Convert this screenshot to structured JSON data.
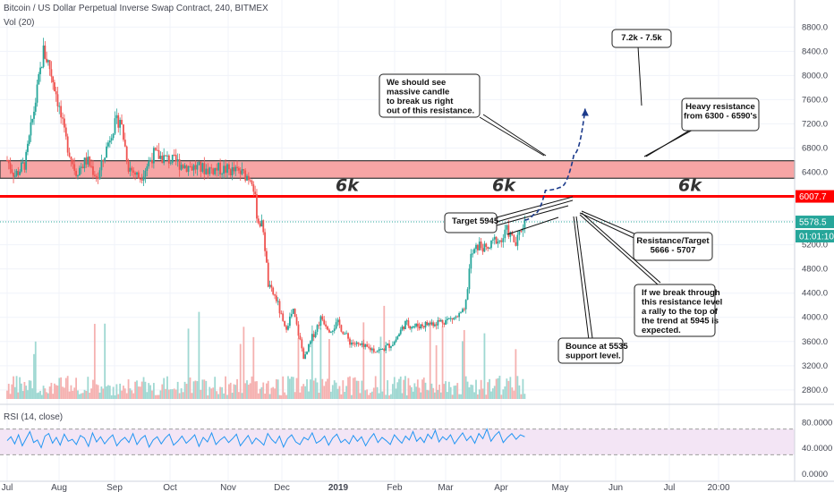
{
  "header": {
    "title": "Bitcoin / US Dollar Perpetual Inverse Swap Contract, 240, BITMEX",
    "volume_label": "Vol (20)",
    "rsi_label": "RSI (14, close)"
  },
  "colors": {
    "up": "#26a69a",
    "down": "#ef5350",
    "resistance_zone": "#f7a5a5",
    "red_line": "#ff0000",
    "price_line": "#26a69a",
    "rsi_line": "#2196f3",
    "rsi_band": "#f3e5f5",
    "arrow": "#1b3a8b"
  },
  "chart_data": [
    {
      "type": "candlestick",
      "title": "Bitcoin / US Dollar Perpetual Inverse Swap Contract, 240, BITMEX",
      "y_ticks": [
        "8800.0",
        "8400.0",
        "8000.0",
        "7600.0",
        "7200.0",
        "6800.0",
        "6400.0",
        "6000.0",
        "5600.0",
        "5200.0",
        "4800.0",
        "4400.0",
        "4000.0",
        "3600.0",
        "3200.0",
        "2800.0"
      ],
      "y_tick_values": [
        8800,
        8400,
        8000,
        7600,
        7200,
        6800,
        6400,
        6000,
        5600,
        5200,
        4800,
        4400,
        4000,
        3600,
        3200,
        2800
      ],
      "ylim": [
        2650,
        9100
      ],
      "x_ticks": [
        "Jul",
        "Aug",
        "Sep",
        "Oct",
        "Nov",
        "Dec",
        "2019",
        "Feb",
        "Mar",
        "Apr",
        "May",
        "Jun",
        "Jul",
        "20:00"
      ],
      "x_tick_months": [
        0,
        1,
        2,
        3,
        4,
        5,
        6,
        7,
        8,
        9,
        10,
        11,
        12,
        13
      ],
      "price_path": [
        {
          "m": 0.0,
          "p": 6600
        },
        {
          "m": 0.15,
          "p": 6350
        },
        {
          "m": 0.35,
          "p": 6550
        },
        {
          "m": 0.55,
          "p": 7600
        },
        {
          "m": 0.7,
          "p": 8400
        },
        {
          "m": 0.8,
          "p": 8200
        },
        {
          "m": 0.95,
          "p": 7700
        },
        {
          "m": 1.1,
          "p": 7000
        },
        {
          "m": 1.3,
          "p": 6400
        },
        {
          "m": 1.5,
          "p": 6600
        },
        {
          "m": 1.7,
          "p": 6300
        },
        {
          "m": 1.95,
          "p": 7100
        },
        {
          "m": 2.1,
          "p": 7300
        },
        {
          "m": 2.25,
          "p": 6500
        },
        {
          "m": 2.45,
          "p": 6300
        },
        {
          "m": 2.7,
          "p": 6700
        },
        {
          "m": 3.0,
          "p": 6600
        },
        {
          "m": 3.3,
          "p": 6500
        },
        {
          "m": 3.6,
          "p": 6450
        },
        {
          "m": 3.9,
          "p": 6450
        },
        {
          "m": 4.2,
          "p": 6400
        },
        {
          "m": 4.45,
          "p": 6300
        },
        {
          "m": 4.55,
          "p": 5600
        },
        {
          "m": 4.65,
          "p": 5500
        },
        {
          "m": 4.75,
          "p": 4500
        },
        {
          "m": 4.9,
          "p": 4300
        },
        {
          "m": 5.05,
          "p": 3800
        },
        {
          "m": 5.2,
          "p": 4100
        },
        {
          "m": 5.4,
          "p": 3300
        },
        {
          "m": 5.55,
          "p": 3700
        },
        {
          "m": 5.7,
          "p": 4000
        },
        {
          "m": 5.85,
          "p": 3800
        },
        {
          "m": 6.0,
          "p": 3900
        },
        {
          "m": 6.2,
          "p": 3600
        },
        {
          "m": 6.45,
          "p": 3500
        },
        {
          "m": 6.75,
          "p": 3450
        },
        {
          "m": 7.0,
          "p": 3600
        },
        {
          "m": 7.2,
          "p": 3900
        },
        {
          "m": 7.4,
          "p": 3850
        },
        {
          "m": 7.7,
          "p": 3900
        },
        {
          "m": 8.0,
          "p": 3950
        },
        {
          "m": 8.2,
          "p": 4000
        },
        {
          "m": 8.35,
          "p": 4100
        },
        {
          "m": 8.45,
          "p": 5000
        },
        {
          "m": 8.6,
          "p": 5200
        },
        {
          "m": 8.75,
          "p": 5100
        },
        {
          "m": 8.9,
          "p": 5300
        },
        {
          "m": 9.0,
          "p": 5250
        },
        {
          "m": 9.1,
          "p": 5450
        },
        {
          "m": 9.25,
          "p": 5200
        },
        {
          "m": 9.35,
          "p": 5500
        },
        {
          "m": 9.4,
          "p": 5590
        }
      ],
      "resistance_zone": {
        "low": 6300,
        "high": 6590
      },
      "horizontal_line": 6000,
      "current_price": 5578.5,
      "price_labels": {
        "line": "6007.7",
        "current": "5578.5",
        "countdown": "01:01:10"
      },
      "annotations": {
        "six_k": [
          "6k",
          "6k",
          "6k"
        ],
        "target_box": "7.2k - 7.5k",
        "massive_candle": [
          "We should see",
          "massive candle",
          "to break us right",
          "out of this resistance."
        ],
        "heavy_resistance": [
          "Heavy resistance",
          "from 6300 - 6590's"
        ],
        "target_5945": "Target 5945",
        "resistance_target": [
          "Resistance/Target",
          "5666 - 5707"
        ],
        "breakthrough": [
          "If we break through",
          "this resistance level",
          "a rally to the top of",
          "the trend at 5945 is",
          "expected."
        ],
        "bounce": [
          "Bounce at 5535",
          "support level."
        ]
      },
      "projection_path": [
        {
          "m": 9.4,
          "p": 5610
        },
        {
          "m": 9.55,
          "p": 5700
        },
        {
          "m": 9.75,
          "p": 6100
        },
        {
          "m": 10.0,
          "p": 6150
        },
        {
          "m": 10.25,
          "p": 6700
        },
        {
          "m": 10.45,
          "p": 7450
        }
      ]
    },
    {
      "type": "line",
      "title": "RSI (14, close)",
      "ylim": [
        0,
        100
      ],
      "y_ticks": [
        "80.0000",
        "40.0000",
        "0.0000"
      ],
      "y_tick_values": [
        80,
        40,
        0
      ],
      "band": [
        30,
        70
      ],
      "series": [
        {
          "values": [
            52,
            58,
            47,
            61,
            44,
            55,
            66,
            49,
            53,
            41,
            59,
            63,
            48,
            57,
            45,
            62,
            51,
            54,
            46,
            60,
            56,
            43,
            64,
            50,
            58,
            47,
            55,
            61,
            44,
            52,
            57,
            49,
            63,
            46,
            55,
            60,
            42,
            53,
            58,
            47,
            56,
            62,
            45,
            51,
            59,
            48,
            54,
            61,
            43,
            57,
            50,
            64,
            46,
            53,
            58,
            49,
            55,
            62,
            44,
            52,
            60,
            47,
            56,
            51,
            45,
            63,
            54,
            48,
            59,
            42,
            55,
            61,
            50,
            46,
            57,
            53,
            64,
            48,
            52,
            59,
            45,
            56,
            62,
            49,
            54,
            47,
            60,
            51,
            58,
            44,
            55,
            63,
            49,
            57,
            52,
            46,
            61,
            54,
            48,
            59,
            53,
            66,
            51,
            57,
            49,
            62,
            55,
            68,
            50,
            58,
            53,
            61,
            47,
            56,
            64,
            52,
            59,
            48,
            63,
            55,
            70,
            51,
            60,
            66,
            49,
            57,
            63,
            54,
            61,
            58
          ]
        }
      ]
    }
  ]
}
